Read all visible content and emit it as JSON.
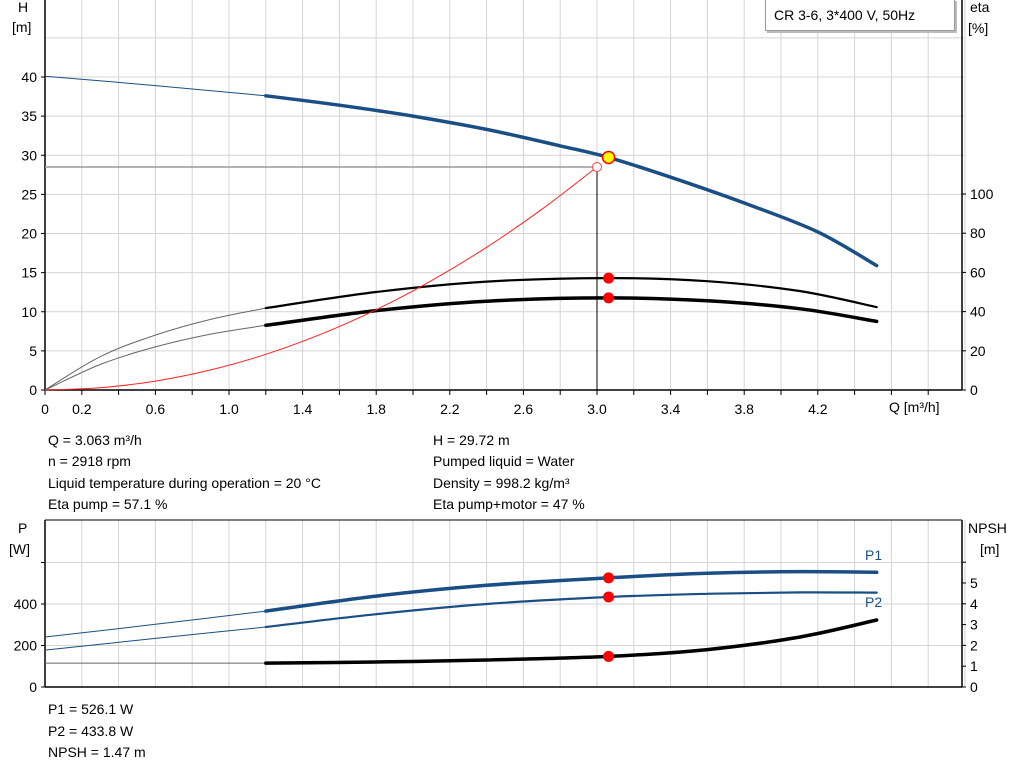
{
  "chart_data": [
    {
      "type": "line",
      "title": "CR 3-6, 3*400 V, 50Hz",
      "xlabel": "Q [m³/h]",
      "ylabel": "H\n[m]",
      "ylabel_left": [
        "H",
        "[m]"
      ],
      "ylabel_right": [
        "eta",
        "[%]"
      ],
      "xlim": [
        0,
        5
      ],
      "ylim": [
        0,
        50
      ],
      "ylim_right": [
        0,
        100
      ],
      "grid": true,
      "x_ticks": [
        "0",
        "0.2",
        "0.6",
        "1.0",
        "1.4",
        "1.8",
        "2.2",
        "2.6",
        "3.0",
        "3.4",
        "3.8",
        "4.2"
      ],
      "y_ticks": [
        "0",
        "5",
        "10",
        "15",
        "20",
        "25",
        "30",
        "35",
        "40"
      ],
      "y_ticks_right": [
        "0",
        "20",
        "40",
        "60",
        "80",
        "100"
      ],
      "recommended_range": [
        1.2,
        4.52
      ],
      "duty_point": {
        "Q": 3.063,
        "H": 29.72,
        "eta_pump": 57.1,
        "eta_total": 47
      },
      "requested_point": {
        "Q": 3.0,
        "H": 28.5
      },
      "series": [
        {
          "id": "H",
          "axis": "left",
          "color": "#1a4e85",
          "points": [
            [
              0,
              40.1
            ],
            [
              0.6,
              38.9
            ],
            [
              1.2,
              37.6
            ],
            [
              1.6,
              36.4
            ],
            [
              2.0,
              35.0
            ],
            [
              2.4,
              33.3
            ],
            [
              2.8,
              31.2
            ],
            [
              3.063,
              29.72
            ],
            [
              3.4,
              27.2
            ],
            [
              3.8,
              23.9
            ],
            [
              4.2,
              20.2
            ],
            [
              4.52,
              15.9
            ]
          ]
        },
        {
          "id": "eta_pump",
          "axis": "right",
          "color": "#000000",
          "points": [
            [
              0,
              0
            ],
            [
              0.3,
              17
            ],
            [
              0.6,
              28
            ],
            [
              0.9,
              36
            ],
            [
              1.2,
              41.8
            ],
            [
              1.8,
              50
            ],
            [
              2.4,
              55.3
            ],
            [
              3.063,
              57.1
            ],
            [
              3.6,
              55.5
            ],
            [
              4.1,
              50.5
            ],
            [
              4.52,
              42.3
            ]
          ]
        },
        {
          "id": "eta_pump_motor",
          "axis": "right",
          "color": "#000000",
          "points": [
            [
              0,
              0
            ],
            [
              0.3,
              13
            ],
            [
              0.6,
              22
            ],
            [
              0.9,
              28.5
            ],
            [
              1.2,
              33
            ],
            [
              1.8,
              40.5
            ],
            [
              2.4,
              45.3
            ],
            [
              3.063,
              47
            ],
            [
              3.6,
              45.5
            ],
            [
              4.1,
              41.5
            ],
            [
              4.52,
              35
            ]
          ]
        },
        {
          "id": "system",
          "axis": "left",
          "color": "#ff2020",
          "points": [
            [
              0,
              0
            ],
            [
              0.3,
              0.29
            ],
            [
              0.6,
              1.14
            ],
            [
              0.9,
              2.57
            ],
            [
              1.2,
              4.56
            ],
            [
              1.5,
              7.13
            ],
            [
              1.8,
              10.26
            ],
            [
              2.1,
              13.97
            ],
            [
              2.4,
              18.24
            ],
            [
              2.7,
              23.09
            ],
            [
              3.0,
              28.5
            ]
          ]
        }
      ]
    },
    {
      "type": "line",
      "ylabel_left": [
        "P",
        "[W]"
      ],
      "ylabel_right": [
        "NPSH",
        "[m]"
      ],
      "xlim": [
        0,
        5
      ],
      "ylim": [
        0,
        800
      ],
      "ylim_right": [
        0,
        8
      ],
      "grid": true,
      "y_ticks": [
        "0",
        "200",
        "400"
      ],
      "y_ticks_right": [
        "0",
        "1",
        "2",
        "3",
        "4",
        "5"
      ],
      "recommended_range": [
        1.2,
        4.52
      ],
      "duty_point": {
        "Q": 3.063,
        "P1": 526.1,
        "P2": 433.8,
        "NPSH": 1.47
      },
      "series": [
        {
          "id": "P1",
          "name": "P1",
          "axis": "left",
          "color": "#1a4e85",
          "points": [
            [
              0,
              241
            ],
            [
              0.6,
              302
            ],
            [
              1.2,
              366
            ],
            [
              1.8,
              438
            ],
            [
              2.4,
              490
            ],
            [
              3.063,
              526.1
            ],
            [
              3.6,
              548
            ],
            [
              4.1,
              556
            ],
            [
              4.52,
              553
            ]
          ]
        },
        {
          "id": "P2",
          "name": "P2",
          "axis": "left",
          "color": "#1a4e85",
          "points": [
            [
              0,
              178
            ],
            [
              0.6,
              234
            ],
            [
              1.2,
              289
            ],
            [
              1.8,
              351
            ],
            [
              2.4,
              400
            ],
            [
              3.063,
              433.8
            ],
            [
              3.6,
              449
            ],
            [
              4.1,
              456
            ],
            [
              4.52,
              455
            ]
          ]
        },
        {
          "id": "NPSH",
          "axis": "right",
          "color": "#000000",
          "points": [
            [
              0,
              1.15
            ],
            [
              1.2,
              1.15
            ],
            [
              1.8,
              1.2
            ],
            [
              2.4,
              1.3
            ],
            [
              3.063,
              1.47
            ],
            [
              3.6,
              1.8
            ],
            [
              4.1,
              2.4
            ],
            [
              4.52,
              3.22
            ]
          ]
        }
      ]
    }
  ],
  "readout_top": {
    "q": "Q = 3.063 m³/h",
    "n": "n = 2918 rpm",
    "temp": "Liquid temperature during operation = 20 °C",
    "eta_pump": "Eta pump = 57.1 %",
    "h": "H = 29.72 m",
    "liquid": "Pumped liquid = Water",
    "density": "Density = 998.2 kg/m³",
    "eta_total": "Eta pump+motor = 47 %"
  },
  "readout_bottom": {
    "p1": "P1 = 526.1 W",
    "p2": "P2 = 433.8 W",
    "npsh": "NPSH = 1.47 m"
  },
  "colors": {
    "accent": "#1a4e85",
    "marker": "#ff0000",
    "duty_fill": "#ffff00",
    "grid": "#d0d0d0"
  }
}
